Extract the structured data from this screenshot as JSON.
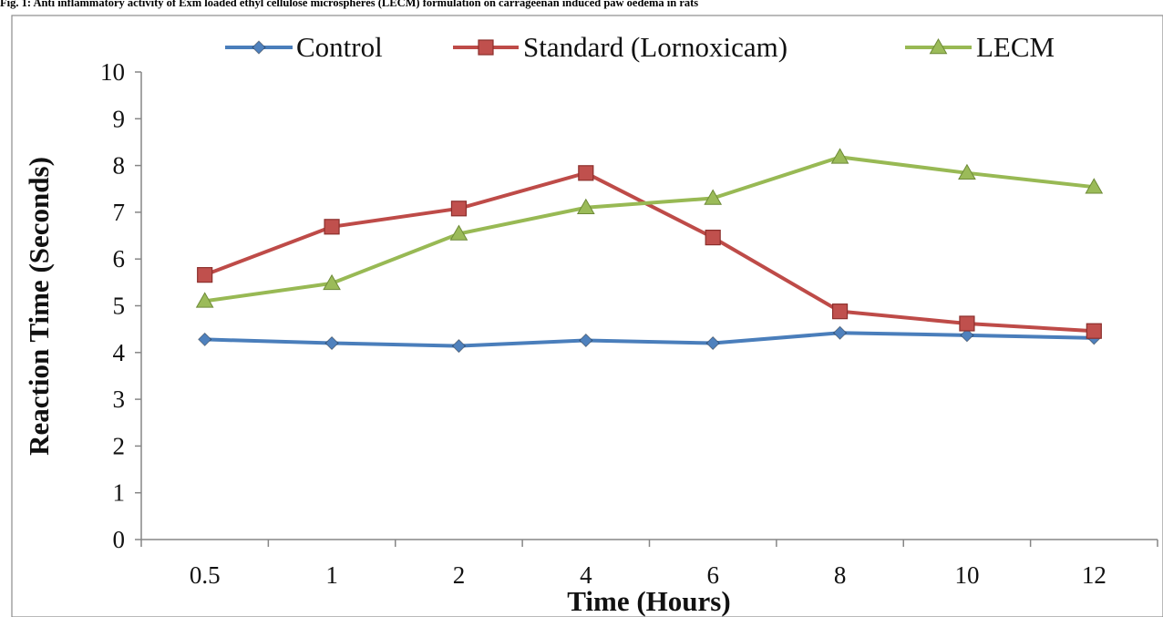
{
  "figure_caption": "Fig. 1: Anti inflammatory activity of Exm loaded ethyl cellulose microspheres (LECM) formulation on carrageenan induced paw oedema in rats",
  "chart_data": {
    "type": "line",
    "categories": [
      "0.5",
      "1",
      "2",
      "4",
      "6",
      "8",
      "10",
      "12"
    ],
    "series": [
      {
        "name": "Control",
        "color": "#4A7EBB",
        "fill": "#4F81BD",
        "marker": "diamond",
        "values": [
          4.28,
          4.2,
          4.14,
          4.26,
          4.2,
          4.42,
          4.37,
          4.31
        ]
      },
      {
        "name": "Standard (Lornoxicam)",
        "color": "#BE4B48",
        "fill": "#C0504D",
        "marker": "square",
        "values": [
          5.66,
          6.69,
          7.08,
          7.84,
          6.46,
          4.88,
          4.62,
          4.46
        ]
      },
      {
        "name": "LECM",
        "color": "#98B954",
        "fill": "#9BBB59",
        "marker": "triangle",
        "values": [
          5.1,
          5.48,
          6.54,
          7.1,
          7.3,
          8.18,
          7.84,
          7.54
        ]
      }
    ],
    "xlabel": "Time (Hours)",
    "ylabel": "Reaction Time (Seconds)",
    "ylim": [
      0,
      10
    ],
    "yticks": [
      0,
      1,
      2,
      3,
      4,
      5,
      6,
      7,
      8,
      9,
      10
    ],
    "grid": false,
    "legend_position": "top"
  }
}
